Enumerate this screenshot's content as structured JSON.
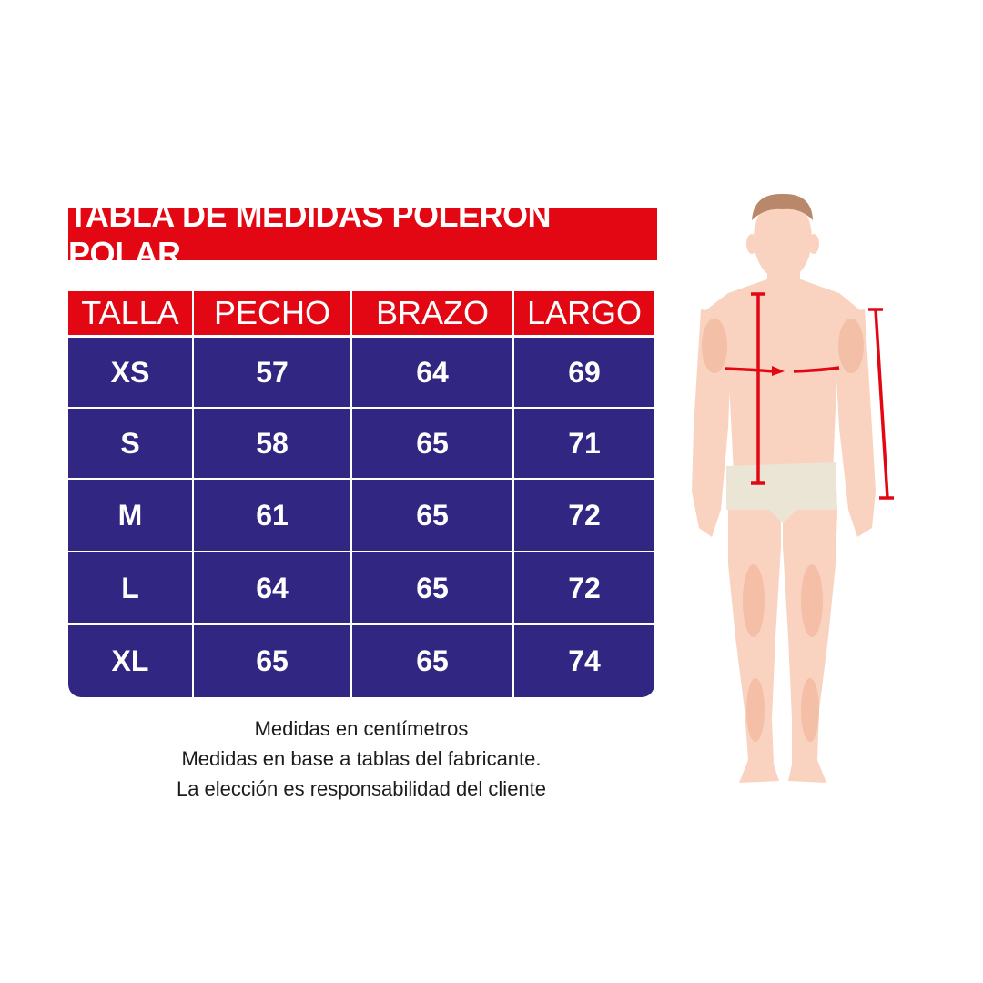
{
  "title": "TABLA DE MEDIDAS POLERÓN POLAR",
  "table": {
    "headers": [
      "TALLA",
      "PECHO",
      "BRAZO",
      "LARGO"
    ],
    "rows": [
      [
        "XS",
        "57",
        "64",
        "69"
      ],
      [
        "S",
        "58",
        "65",
        "71"
      ],
      [
        "M",
        "61",
        "65",
        "72"
      ],
      [
        "L",
        "64",
        "65",
        "72"
      ],
      [
        "XL",
        "65",
        "65",
        "74"
      ]
    ]
  },
  "notes": [
    "Medidas en centímetros",
    "Medidas en base a tablas del fabricante.",
    "La elección es responsabilidad del cliente"
  ],
  "colors": {
    "header_red": "#e30613",
    "cell_blue": "#312783",
    "measure_red": "#e30613"
  },
  "figure": {
    "icon": "human-body-measurement-diagram"
  }
}
